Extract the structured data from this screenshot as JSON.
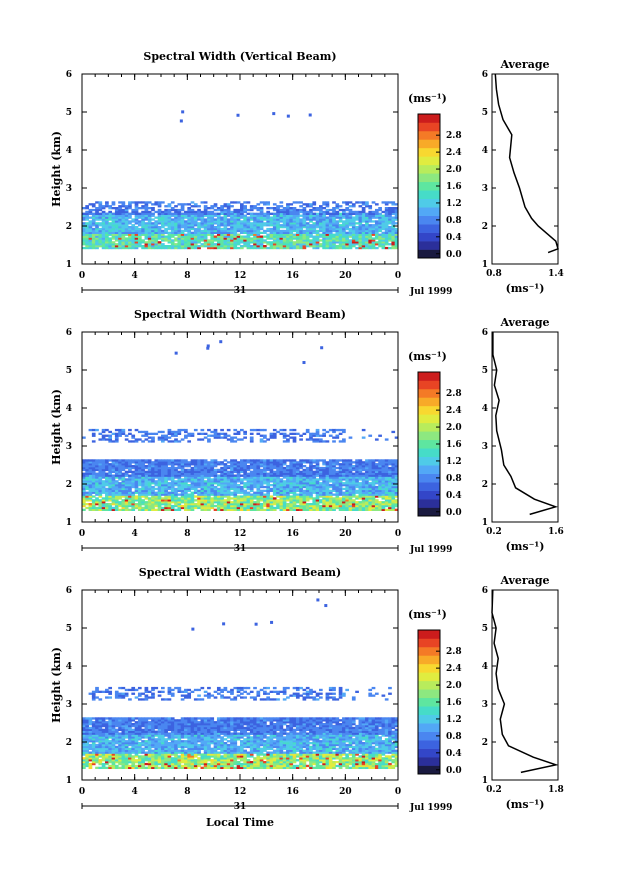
{
  "colorbar": {
    "unit": "(ms⁻¹)",
    "colors": [
      "#1a1a40",
      "#2b2f9a",
      "#3346c8",
      "#3c63e0",
      "#4a86f0",
      "#52a8f6",
      "#4fcbe8",
      "#46dcc8",
      "#5ee6a0",
      "#8de880",
      "#b8ec5c",
      "#e0ec40",
      "#f8d830",
      "#f8aa28",
      "#f47a26",
      "#e84424",
      "#cc1c1c"
    ],
    "ticks": [
      "0.0",
      "0.4",
      "0.8",
      "1.2",
      "1.6",
      "2.0",
      "2.4",
      "2.8"
    ]
  },
  "xaxis": {
    "ticks": [
      "0",
      "4",
      "8",
      "12",
      "16",
      "20",
      "0"
    ],
    "day_label": "31",
    "date_label": "Jul 1999"
  },
  "time_axis_label": "Local Time",
  "height_axis_label": "Height (km)",
  "average_title": "Average",
  "average_unit": "(ms⁻¹)",
  "panels": [
    {
      "title": "Spectral Width (Vertical Beam)",
      "yticks": [
        "1",
        "2",
        "3",
        "4",
        "5",
        "6"
      ],
      "avg_xticks": [
        "0.8",
        "1.4"
      ]
    },
    {
      "title": "Spectral Width (Northward Beam)",
      "yticks": [
        "1",
        "2",
        "3",
        "4",
        "5",
        "6"
      ],
      "avg_xticks": [
        "0.2",
        "1.6"
      ]
    },
    {
      "title": "Spectral Width (Eastward Beam)",
      "yticks": [
        "1",
        "2",
        "3",
        "4",
        "5",
        "6"
      ],
      "avg_xticks": [
        "0.2",
        "1.8"
      ]
    }
  ],
  "chart_data": [
    {
      "type": "heatmap",
      "title": "Spectral Width (Vertical Beam)",
      "xlabel": "",
      "ylabel": "Height (km)",
      "xlim": [
        0,
        24
      ],
      "ylim": [
        1,
        6
      ],
      "value_unit": "ms-1",
      "value_range": [
        0,
        3.0
      ],
      "layers": [
        {
          "height_range": [
            1.4,
            1.8
          ],
          "value": 1.3
        },
        {
          "height_range": [
            1.8,
            2.3
          ],
          "value": 0.9
        },
        {
          "height_range": [
            2.3,
            2.6
          ],
          "value": 0.6
        }
      ],
      "profile": {
        "title": "Average",
        "xlabel": "(ms-1)",
        "xlim": [
          0.8,
          1.4
        ],
        "ylim": [
          1,
          6
        ],
        "points": [
          [
            1.31,
            1.3
          ],
          [
            1.4,
            1.4
          ],
          [
            1.38,
            1.6
          ],
          [
            1.3,
            1.8
          ],
          [
            1.22,
            2.0
          ],
          [
            1.16,
            2.2
          ],
          [
            1.1,
            2.5
          ],
          [
            1.05,
            3.0
          ],
          [
            1.0,
            3.4
          ],
          [
            0.96,
            3.8
          ],
          [
            0.97,
            4.1
          ],
          [
            0.98,
            4.4
          ],
          [
            0.9,
            4.8
          ],
          [
            0.86,
            5.2
          ],
          [
            0.84,
            5.6
          ],
          [
            0.83,
            6.0
          ]
        ]
      }
    },
    {
      "type": "heatmap",
      "title": "Spectral Width (Northward Beam)",
      "xlabel": "",
      "ylabel": "Height (km)",
      "xlim": [
        0,
        24
      ],
      "ylim": [
        1,
        6
      ],
      "value_unit": "ms-1",
      "value_range": [
        0,
        3.0
      ],
      "layers": [
        {
          "height_range": [
            1.3,
            1.7
          ],
          "value": 1.6
        },
        {
          "height_range": [
            1.7,
            2.2
          ],
          "value": 0.9
        },
        {
          "height_range": [
            2.2,
            2.6
          ],
          "value": 0.6
        },
        {
          "height_range": [
            3.1,
            3.4
          ],
          "value": 0.6
        }
      ],
      "profile": {
        "title": "Average",
        "xlabel": "(ms-1)",
        "xlim": [
          0.2,
          1.6
        ],
        "ylim": [
          1,
          6
        ],
        "points": [
          [
            1.0,
            1.2
          ],
          [
            1.55,
            1.4
          ],
          [
            1.1,
            1.6
          ],
          [
            0.7,
            1.9
          ],
          [
            0.6,
            2.2
          ],
          [
            0.45,
            2.5
          ],
          [
            0.4,
            2.9
          ],
          [
            0.3,
            3.4
          ],
          [
            0.28,
            3.8
          ],
          [
            0.35,
            4.2
          ],
          [
            0.25,
            4.6
          ],
          [
            0.3,
            5.0
          ],
          [
            0.22,
            5.4
          ],
          [
            0.22,
            6.0
          ]
        ]
      }
    },
    {
      "type": "heatmap",
      "title": "Spectral Width (Eastward Beam)",
      "xlabel": "Local Time",
      "ylabel": "Height (km)",
      "xlim": [
        0,
        24
      ],
      "ylim": [
        1,
        6
      ],
      "value_unit": "ms-1",
      "value_range": [
        0,
        3.0
      ],
      "layers": [
        {
          "height_range": [
            1.3,
            1.7
          ],
          "value": 1.6
        },
        {
          "height_range": [
            1.7,
            2.2
          ],
          "value": 0.9
        },
        {
          "height_range": [
            2.2,
            2.6
          ],
          "value": 0.6
        },
        {
          "height_range": [
            3.1,
            3.4
          ],
          "value": 0.6
        }
      ],
      "profile": {
        "title": "Average",
        "xlabel": "(ms-1)",
        "xlim": [
          0.2,
          1.8
        ],
        "ylim": [
          1,
          6
        ],
        "points": [
          [
            0.9,
            1.2
          ],
          [
            1.75,
            1.4
          ],
          [
            1.2,
            1.6
          ],
          [
            0.6,
            1.9
          ],
          [
            0.45,
            2.2
          ],
          [
            0.4,
            2.6
          ],
          [
            0.5,
            3.0
          ],
          [
            0.35,
            3.4
          ],
          [
            0.3,
            3.8
          ],
          [
            0.35,
            4.2
          ],
          [
            0.25,
            4.6
          ],
          [
            0.3,
            5.0
          ],
          [
            0.2,
            5.4
          ],
          [
            0.22,
            6.0
          ]
        ]
      }
    }
  ]
}
